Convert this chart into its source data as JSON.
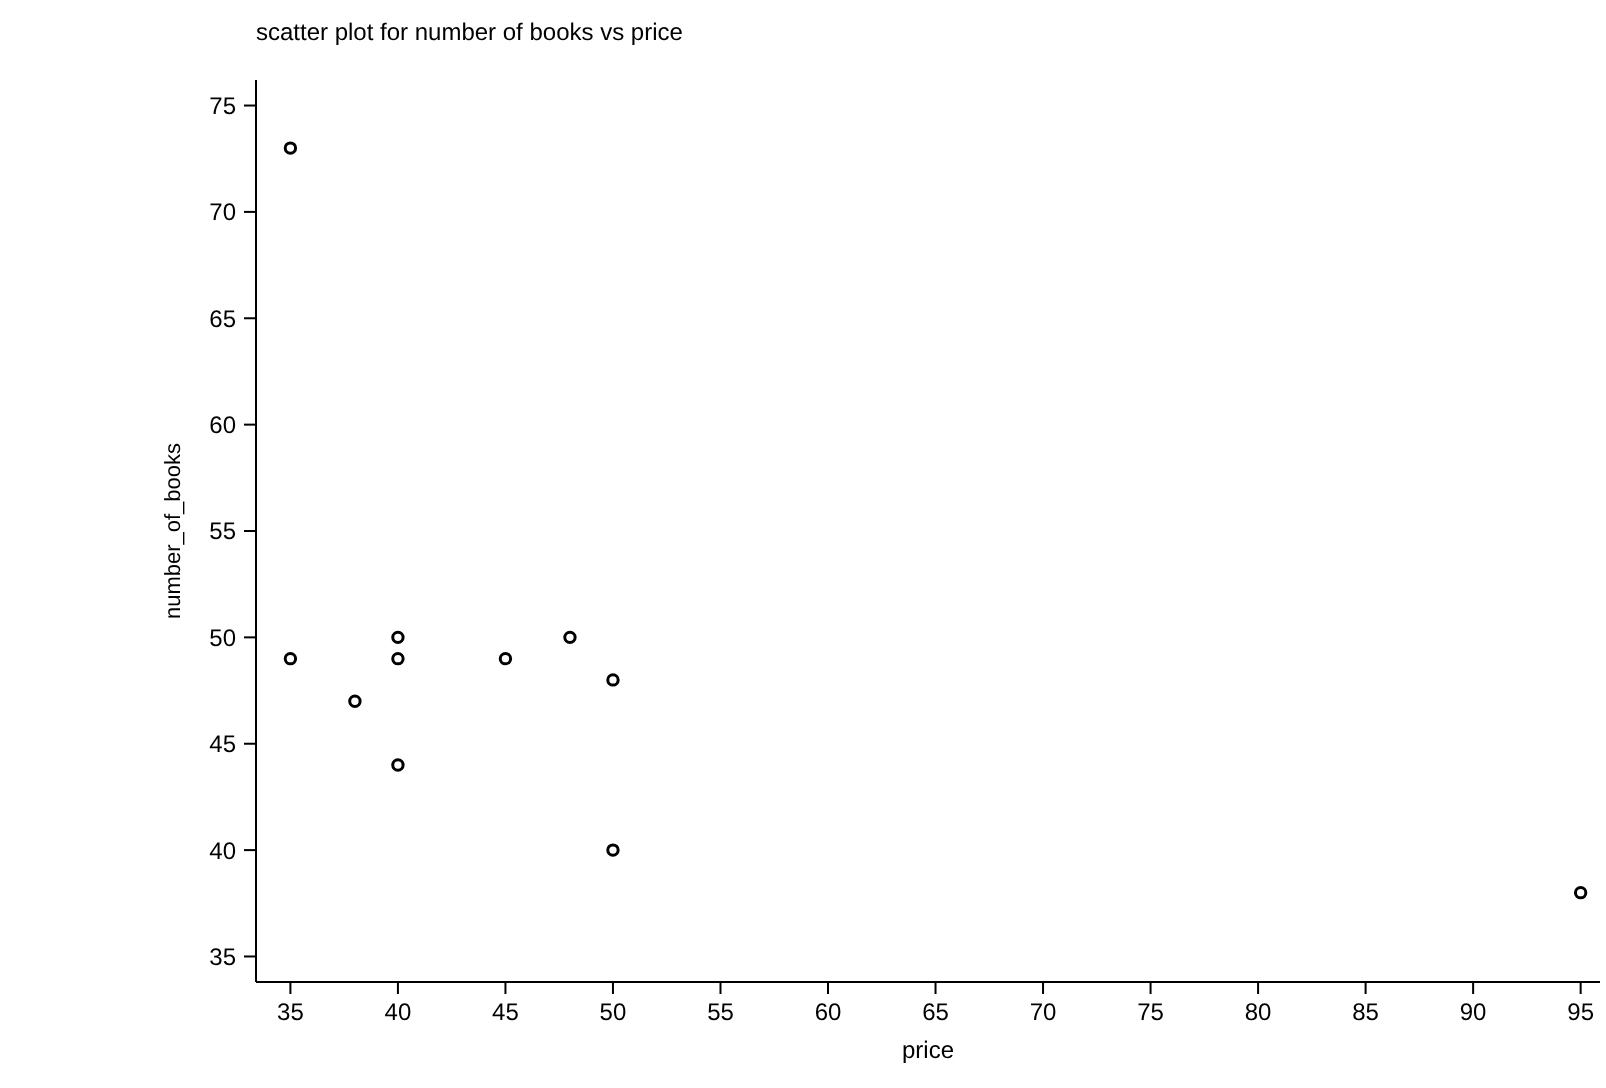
{
  "chart_data": {
    "type": "scatter",
    "title": "scatter plot for number of books vs price",
    "xlabel": "price",
    "ylabel": "number_of_books",
    "x": [
      35,
      35,
      38,
      40,
      40,
      40,
      45,
      48,
      50,
      50,
      95
    ],
    "values": [
      73,
      49,
      47,
      50,
      49,
      44,
      49,
      50,
      48,
      40,
      38
    ],
    "color": "#000000",
    "marker": "circle",
    "grid": false,
    "xlim": [
      33.4,
      95.9
    ],
    "xticks": [
      35,
      40,
      45,
      50,
      55,
      60,
      65,
      70,
      75,
      80,
      85,
      90,
      95
    ],
    "ylim": [
      33.8,
      76.2
    ],
    "yticks": [
      35,
      40,
      45,
      50,
      55,
      60,
      65,
      70,
      75
    ]
  }
}
